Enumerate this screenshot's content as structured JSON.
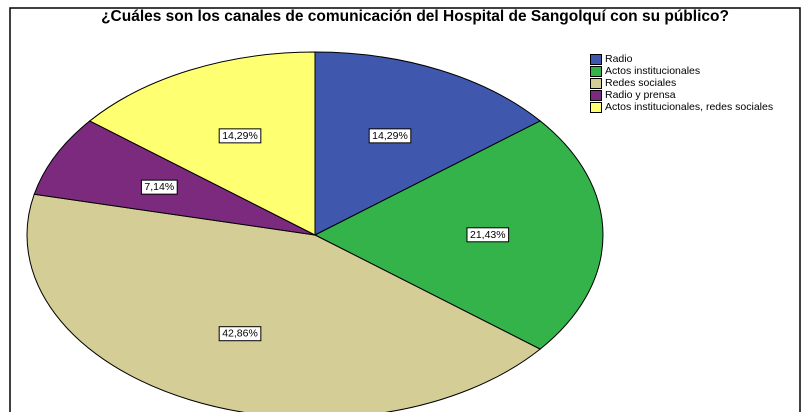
{
  "chart_data": {
    "type": "pie",
    "title": "¿Cuáles son los canales de comunicación del Hospital de Sangolquí con su público?",
    "categories": [
      "Radio",
      "Actos institucionales",
      "Redes sociales",
      "Radio y prensa",
      "Actos institucionales, redes sociales"
    ],
    "values": [
      14.29,
      21.43,
      42.86,
      7.14,
      14.29
    ],
    "value_labels": [
      "14,29%",
      "21,43%",
      "42,86%",
      "7,14%",
      "14,29%"
    ],
    "colors": [
      "#3f58ae",
      "#33b34a",
      "#d4cd96",
      "#7b2a7d",
      "#ffff72"
    ],
    "legend": "top-right"
  }
}
